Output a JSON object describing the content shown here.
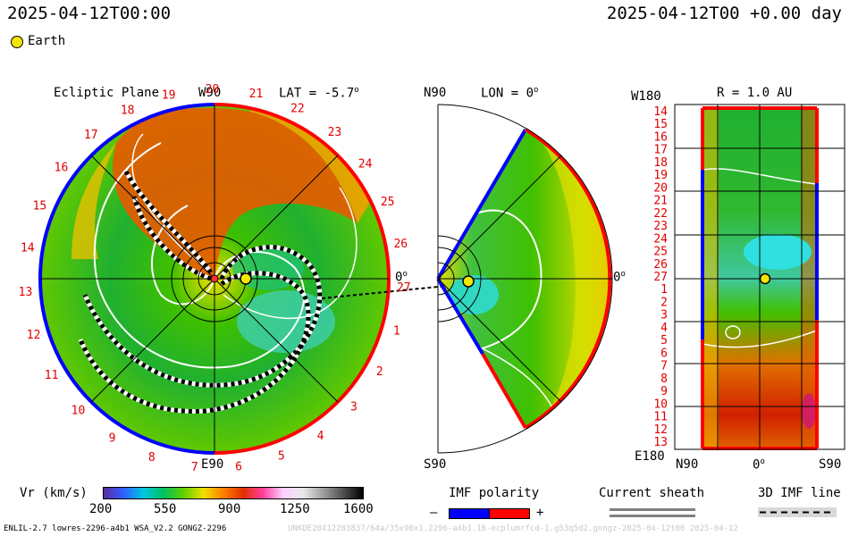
{
  "header": {
    "left_timestamp": "2025-04-12T00:00",
    "right_timestamp": "2025-04-12T00 +0.00 day"
  },
  "legend": {
    "earth_label": "Earth",
    "earth_color": "#f3e600"
  },
  "ecliptic": {
    "title": "Ecliptic Plane",
    "top_label": "W90",
    "lat_label": "LAT = -5.7",
    "lat_degree": "o",
    "right_label": "0",
    "right_degree": "o",
    "bottom_label": "E90",
    "carrington_labels": [
      "19",
      "20",
      "21",
      "22",
      "23",
      "24",
      "25",
      "26",
      "27",
      "1",
      "2",
      "3",
      "4",
      "5",
      "6",
      "7",
      "8",
      "9",
      "10",
      "11",
      "12",
      "13",
      "14",
      "15",
      "16",
      "17",
      "18"
    ]
  },
  "meridional": {
    "top_label": "N90",
    "lon_label": "LON = 0",
    "lon_degree": "o",
    "right_label": "0",
    "right_degree": "o",
    "bottom_label": "S90"
  },
  "radial": {
    "top_left_label": "W180",
    "r_label": "R = 1.0 AU",
    "bottom_left_label": "E180",
    "x_labels": [
      "N90",
      "0",
      "S90"
    ],
    "x_mid_degree": "o",
    "y_labels": [
      "14",
      "15",
      "16",
      "17",
      "18",
      "19",
      "20",
      "21",
      "22",
      "23",
      "24",
      "25",
      "26",
      "27",
      "1",
      "2",
      "3",
      "4",
      "5",
      "6",
      "7",
      "8",
      "9",
      "10",
      "11",
      "12",
      "13"
    ]
  },
  "colorbar": {
    "label": "Vr (km/s)",
    "ticks": [
      "200",
      "550",
      "900",
      "1250",
      "1600"
    ],
    "stops": [
      "#5a2ca0",
      "#2f5fff",
      "#00c8e0",
      "#00c060",
      "#60d000",
      "#f0e000",
      "#ff8000",
      "#e03000",
      "#ff40a0",
      "#ffd0ff",
      "#e8e8e8",
      "#a0a0a0",
      "#505050",
      "#000000"
    ]
  },
  "imf_polarity": {
    "label": "IMF polarity",
    "minus": "–",
    "plus": "+",
    "negative_color": "#0000ff",
    "positive_color": "#ff0000"
  },
  "current_sheath": {
    "label": "Current sheath"
  },
  "imf_3d": {
    "label": "3D IMF line"
  },
  "footer": {
    "model_info": "ENLIL-2.7 lowres-2296-a4b1 WSA_V2.2 GONGZ-2296",
    "run_info": "UNKDE20412203837/64a/35x90x1.2296-a4b1.16-ecplumrfcd-1.g53q5d2.gongz-2025-04-12t00   2025-04-12"
  }
}
